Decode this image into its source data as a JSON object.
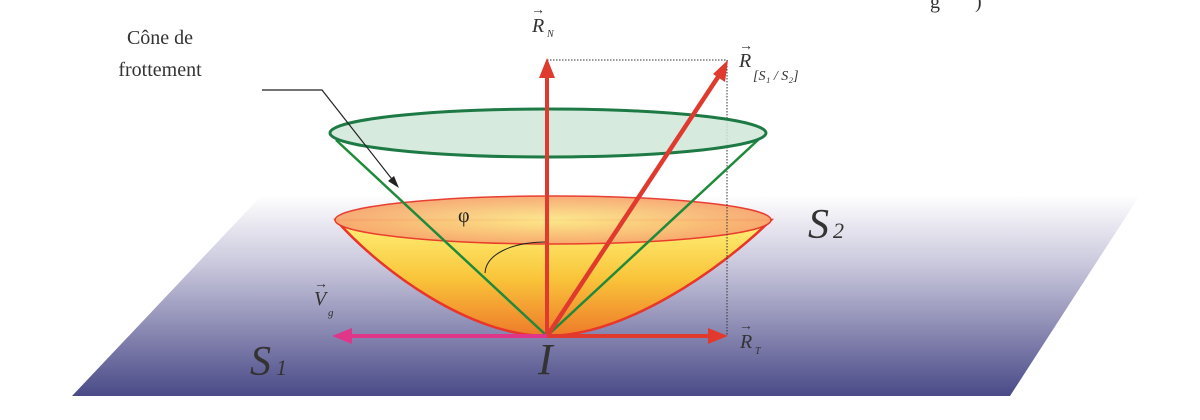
{
  "caption_fragment": "g       )",
  "labels": {
    "cone_line1": "Cône de",
    "cone_line2": "frottement",
    "RN": "R",
    "RN_sub": "N",
    "RS": "R",
    "RS_sub": "[S₁ / S₂]",
    "RT": "R",
    "RT_sub": "T",
    "Vg": "V",
    "Vg_sub": "g",
    "phi": "φ",
    "S1": "S",
    "S1_sub": "1",
    "S2": "S",
    "S2_sub": "2",
    "I": "I"
  },
  "colors": {
    "force_arrows": "#e03a2f",
    "velocity_arrow": "#e0368a",
    "cone_outline": "#1e7a45",
    "plane_bottom": "#4a4a88"
  }
}
